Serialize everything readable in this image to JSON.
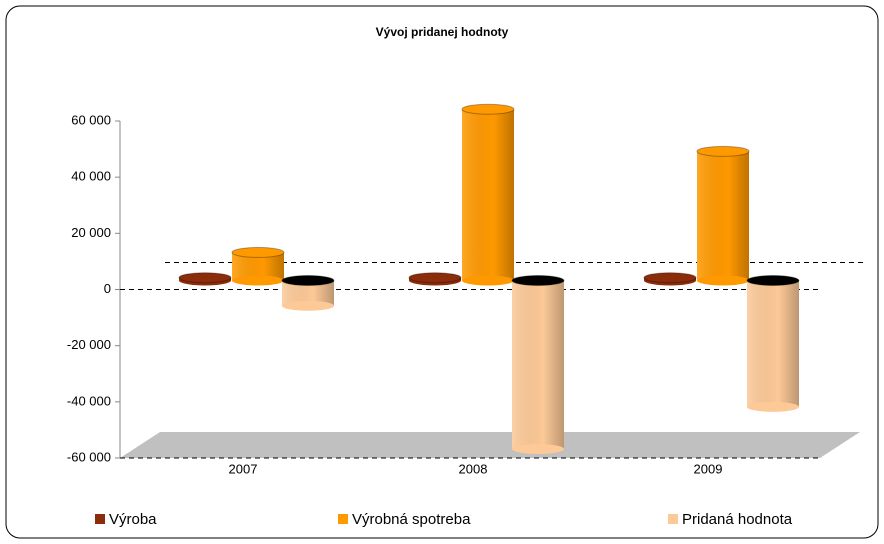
{
  "chart_data": {
    "type": "bar",
    "title": "Vývoj pridanej hodnoty",
    "categories": [
      "2007",
      "2008",
      "2009"
    ],
    "series": [
      {
        "name": "Výroba",
        "color": "#8b2c0b",
        "values": [
          1000,
          1000,
          1000
        ]
      },
      {
        "name": "Výrobná spotreba",
        "color": "#ff9900",
        "values": [
          10000,
          61000,
          46000
        ]
      },
      {
        "name": "Pridaná hodnota",
        "color": "#fcc997",
        "values": [
          -9000,
          -60000,
          -45000
        ]
      }
    ],
    "ylim": [
      -60000,
      60000
    ],
    "yticks": [
      {
        "value": -60000,
        "label": "-60 000"
      },
      {
        "value": -40000,
        "label": "-40 000"
      },
      {
        "value": -20000,
        "label": "-20 000"
      },
      {
        "value": 0,
        "label": "0"
      },
      {
        "value": 20000,
        "label": "20 000"
      },
      {
        "value": 40000,
        "label": "40 000"
      },
      {
        "value": 60000,
        "label": "60 000"
      }
    ],
    "legend": "bottom"
  }
}
